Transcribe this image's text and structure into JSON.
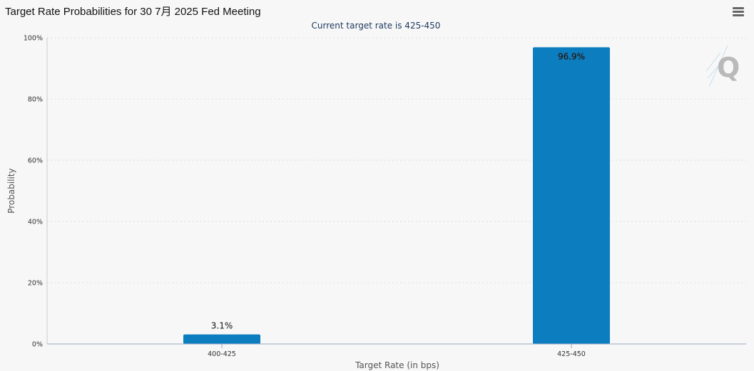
{
  "header": {
    "title": "Target Rate Probabilities for 30 7月 2025 Fed Meeting",
    "menu_icon": "hamburger-menu-icon",
    "logo_icon": "quikstrike-q-logo-icon"
  },
  "colors": {
    "bar": "#0c7dbf",
    "grid": "#d4d4d4",
    "subtitle": "#1f3b60",
    "logo": "#b9b9b9"
  },
  "chart_data": {
    "type": "bar",
    "title": "Target Rate Probabilities for 30 7月 2025 Fed Meeting",
    "subtitle": "Current target rate is 425-450",
    "xlabel": "Target Rate (in bps)",
    "ylabel": "Probability",
    "categories": [
      "400-425",
      "425-450"
    ],
    "values": [
      3.1,
      96.9
    ],
    "data_labels": [
      "3.1%",
      "96.9%"
    ],
    "ylim": [
      0,
      100
    ],
    "yticks": [
      0,
      20,
      40,
      60,
      80,
      100
    ],
    "ytick_labels": [
      "0%",
      "20%",
      "40%",
      "60%",
      "80%",
      "100%"
    ],
    "grid": true,
    "grid_style": "dotted"
  }
}
